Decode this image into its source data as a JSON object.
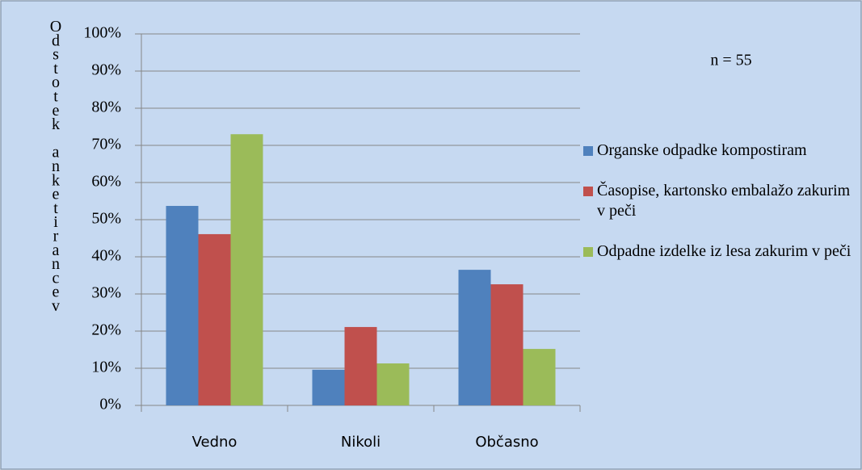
{
  "chart_data": {
    "type": "bar",
    "ylabel": "Odstotek anketirancev",
    "annotation": "n = 55",
    "categories": [
      "Vedno",
      "Nikoli",
      "Občasno"
    ],
    "series": [
      {
        "name": "Organske odpadke kompostiram",
        "color": "#4f81bd",
        "values": [
          53.7,
          9.6,
          36.5
        ]
      },
      {
        "name": "Časopise, kartonsko embalažo zakurim v peči",
        "color": "#c0504d",
        "values": [
          46.1,
          21.1,
          32.6
        ]
      },
      {
        "name": "Odpadne izdelke iz lesa zakurim v peči",
        "color": "#9bbb59",
        "values": [
          73.0,
          11.3,
          15.2
        ]
      }
    ],
    "ylim": [
      0,
      100
    ],
    "yticks": [
      {
        "value": 0,
        "label": "0%"
      },
      {
        "value": 10,
        "label": "10%"
      },
      {
        "value": 20,
        "label": "20%"
      },
      {
        "value": 30,
        "label": "30%"
      },
      {
        "value": 40,
        "label": "40%"
      },
      {
        "value": 50,
        "label": "50%"
      },
      {
        "value": 60,
        "label": "60%"
      },
      {
        "value": 70,
        "label": "70%"
      },
      {
        "value": 80,
        "label": "80%"
      },
      {
        "value": 90,
        "label": "90%"
      },
      {
        "value": 100,
        "label": "100%"
      }
    ],
    "grid": true,
    "legend": "right"
  }
}
